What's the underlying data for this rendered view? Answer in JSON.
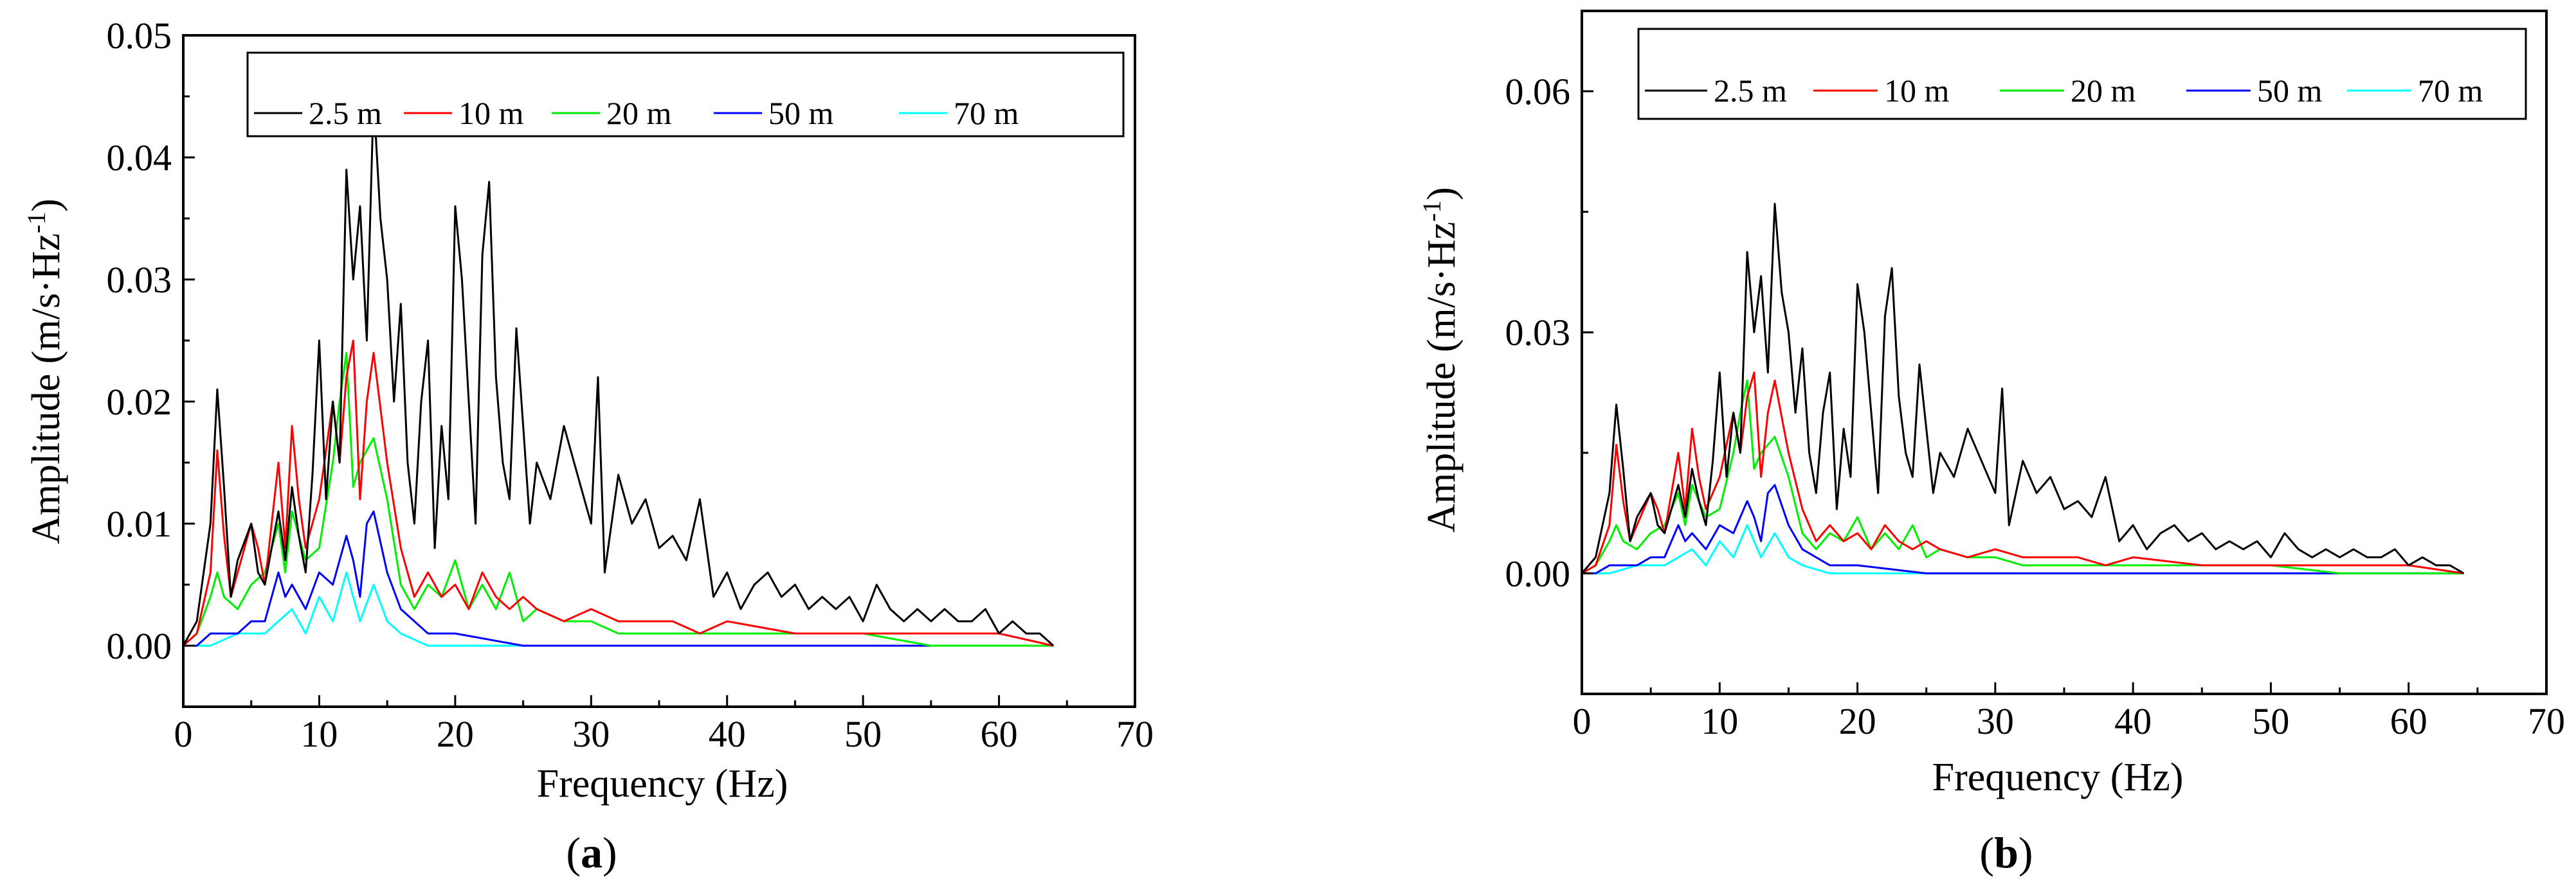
{
  "chart_data": [
    {
      "type": "line",
      "caption": "(a)",
      "caption_open": "(",
      "caption_letter": "a",
      "caption_close": ")",
      "xlabel": "Frequency  (Hz)",
      "ylabel": "Amplitude  (m/s·Hz",
      "ylabel_sup": "-1",
      "ylabel_close": ")",
      "xlim": [
        0,
        70
      ],
      "ylim": [
        -0.005,
        0.05
      ],
      "x_ticks": [
        0,
        10,
        20,
        30,
        40,
        50,
        60,
        70
      ],
      "x_tick_labels": [
        "0",
        "10",
        "20",
        "30",
        "40",
        "50",
        "60",
        "70"
      ],
      "y_ticks": [
        0.0,
        0.01,
        0.02,
        0.03,
        0.04,
        0.05
      ],
      "y_tick_labels": [
        "0.00",
        "0.01",
        "0.02",
        "0.03",
        "0.04",
        "0.05"
      ],
      "legend_position": "top",
      "series": [
        {
          "name": "2.5 m",
          "color": "#000000",
          "x": [
            0,
            1,
            2,
            2.5,
            3,
            3.5,
            4,
            5,
            5.5,
            6,
            7,
            7.5,
            8,
            8.5,
            9,
            9.5,
            10,
            10.5,
            11,
            11.5,
            12,
            12.5,
            13,
            13.5,
            14,
            14.5,
            15,
            15.5,
            16,
            16.5,
            17,
            17.5,
            18,
            18.5,
            19,
            19.5,
            20,
            20.5,
            21,
            21.5,
            22,
            22.5,
            23,
            23.5,
            24,
            24.5,
            25,
            25.5,
            26,
            27,
            28,
            29,
            30,
            30.5,
            31,
            32,
            33,
            34,
            35,
            36,
            37,
            38,
            39,
            40,
            41,
            42,
            43,
            44,
            45,
            46,
            47,
            48,
            49,
            50,
            51,
            52,
            53,
            54,
            55,
            56,
            57,
            58,
            59,
            60,
            61,
            62,
            63,
            64
          ],
          "y": [
            0.0,
            0.002,
            0.01,
            0.021,
            0.013,
            0.004,
            0.007,
            0.01,
            0.006,
            0.005,
            0.011,
            0.007,
            0.013,
            0.009,
            0.006,
            0.014,
            0.025,
            0.012,
            0.02,
            0.015,
            0.039,
            0.03,
            0.036,
            0.025,
            0.045,
            0.035,
            0.03,
            0.02,
            0.028,
            0.015,
            0.01,
            0.02,
            0.025,
            0.008,
            0.018,
            0.012,
            0.036,
            0.03,
            0.02,
            0.01,
            0.032,
            0.038,
            0.022,
            0.015,
            0.012,
            0.026,
            0.018,
            0.01,
            0.015,
            0.012,
            0.018,
            0.014,
            0.01,
            0.022,
            0.006,
            0.014,
            0.01,
            0.012,
            0.008,
            0.009,
            0.007,
            0.012,
            0.004,
            0.006,
            0.003,
            0.005,
            0.006,
            0.004,
            0.005,
            0.003,
            0.004,
            0.003,
            0.004,
            0.002,
            0.005,
            0.003,
            0.002,
            0.003,
            0.002,
            0.003,
            0.002,
            0.002,
            0.003,
            0.001,
            0.002,
            0.001,
            0.001,
            0.0
          ]
        },
        {
          "name": "10 m",
          "color": "#ff0000",
          "x": [
            0,
            1,
            2,
            2.5,
            3,
            3.5,
            4,
            5,
            5.5,
            6,
            7,
            7.5,
            8,
            8.5,
            9,
            10,
            11,
            11.5,
            12,
            12.5,
            13,
            13.5,
            14,
            15,
            16,
            17,
            18,
            19,
            20,
            21,
            22,
            23,
            24,
            25,
            26,
            28,
            30,
            32,
            34,
            36,
            38,
            40,
            45,
            50,
            55,
            60,
            64
          ],
          "y": [
            0.0,
            0.001,
            0.006,
            0.016,
            0.009,
            0.004,
            0.006,
            0.01,
            0.008,
            0.005,
            0.015,
            0.008,
            0.018,
            0.012,
            0.008,
            0.012,
            0.02,
            0.015,
            0.022,
            0.025,
            0.012,
            0.02,
            0.024,
            0.015,
            0.008,
            0.004,
            0.006,
            0.004,
            0.005,
            0.003,
            0.006,
            0.004,
            0.003,
            0.004,
            0.003,
            0.002,
            0.003,
            0.002,
            0.002,
            0.002,
            0.001,
            0.002,
            0.001,
            0.001,
            0.001,
            0.001,
            0.0
          ]
        },
        {
          "name": "20 m",
          "color": "#00ee00",
          "x": [
            0,
            1,
            2,
            2.5,
            3,
            4,
            5,
            6,
            7,
            7.5,
            8,
            9,
            10,
            11,
            11.5,
            12,
            12.5,
            13,
            14,
            15,
            16,
            17,
            18,
            19,
            20,
            21,
            22,
            23,
            24,
            25,
            26,
            28,
            30,
            32,
            35,
            38,
            40,
            45,
            50,
            55,
            60,
            64
          ],
          "y": [
            0.0,
            0.001,
            0.004,
            0.006,
            0.004,
            0.003,
            0.005,
            0.006,
            0.01,
            0.006,
            0.011,
            0.007,
            0.008,
            0.015,
            0.02,
            0.024,
            0.013,
            0.015,
            0.017,
            0.012,
            0.005,
            0.003,
            0.005,
            0.004,
            0.007,
            0.003,
            0.005,
            0.003,
            0.006,
            0.002,
            0.003,
            0.002,
            0.002,
            0.001,
            0.001,
            0.001,
            0.001,
            0.001,
            0.001,
            0.0,
            0.0,
            0.0
          ]
        },
        {
          "name": "50 m",
          "color": "#0000ff",
          "x": [
            0,
            1,
            2,
            3,
            4,
            5,
            6,
            7,
            7.5,
            8,
            9,
            10,
            11,
            12,
            12.5,
            13,
            13.5,
            14,
            15,
            16,
            17,
            18,
            20,
            25,
            30,
            40,
            50,
            60,
            64
          ],
          "y": [
            0.0,
            0.0,
            0.001,
            0.001,
            0.001,
            0.002,
            0.002,
            0.006,
            0.004,
            0.005,
            0.003,
            0.006,
            0.005,
            0.009,
            0.007,
            0.004,
            0.01,
            0.011,
            0.006,
            0.003,
            0.002,
            0.001,
            0.001,
            0.0,
            0.0,
            0.0,
            0.0,
            0.0,
            0.0
          ]
        },
        {
          "name": "70 m",
          "color": "#00ffff",
          "x": [
            0,
            2,
            4,
            6,
            7,
            8,
            9,
            10,
            11,
            12,
            13,
            14,
            15,
            16,
            18,
            20,
            30,
            40,
            50,
            60,
            64
          ],
          "y": [
            0.0,
            0.0,
            0.001,
            0.001,
            0.002,
            0.003,
            0.001,
            0.004,
            0.002,
            0.006,
            0.002,
            0.005,
            0.002,
            0.001,
            0.0,
            0.0,
            0.0,
            0.0,
            0.0,
            0.0,
            0.0
          ]
        }
      ]
    },
    {
      "type": "line",
      "caption": "(b)",
      "caption_open": "(",
      "caption_letter": "b",
      "caption_close": ")",
      "xlabel": "Frequency  (Hz)",
      "ylabel": "Amplitude  (m/s·Hz",
      "ylabel_sup": "-1",
      "ylabel_close": ")",
      "xlim": [
        0,
        70
      ],
      "ylim": [
        -0.015,
        0.07
      ],
      "x_ticks": [
        0,
        10,
        20,
        30,
        40,
        50,
        60,
        70
      ],
      "x_tick_labels": [
        "0",
        "10",
        "20",
        "30",
        "40",
        "50",
        "60",
        "70"
      ],
      "y_ticks": [
        0.0,
        0.03,
        0.06
      ],
      "y_tick_labels": [
        "0.00",
        "0.03",
        "0.06"
      ],
      "legend_position": "top",
      "series": [
        {
          "name": "2.5 m",
          "color": "#000000",
          "x": [
            0,
            1,
            2,
            2.5,
            3,
            3.5,
            4,
            5,
            5.5,
            6,
            7,
            7.5,
            8,
            8.5,
            9,
            9.5,
            10,
            10.5,
            11,
            11.5,
            12,
            12.5,
            13,
            13.5,
            14,
            14.5,
            15,
            15.5,
            16,
            16.5,
            17,
            17.5,
            18,
            18.5,
            19,
            19.5,
            20,
            20.5,
            21,
            21.5,
            22,
            22.5,
            23,
            23.5,
            24,
            24.5,
            25,
            25.5,
            26,
            27,
            28,
            29,
            30,
            30.5,
            31,
            32,
            33,
            34,
            35,
            36,
            37,
            38,
            39,
            40,
            41,
            42,
            43,
            44,
            45,
            46,
            47,
            48,
            49,
            50,
            51,
            52,
            53,
            54,
            55,
            56,
            57,
            58,
            59,
            60,
            61,
            62,
            63,
            64
          ],
          "y": [
            0.0,
            0.002,
            0.01,
            0.021,
            0.013,
            0.004,
            0.007,
            0.01,
            0.006,
            0.005,
            0.011,
            0.007,
            0.013,
            0.009,
            0.006,
            0.014,
            0.025,
            0.012,
            0.02,
            0.015,
            0.04,
            0.03,
            0.037,
            0.025,
            0.046,
            0.035,
            0.03,
            0.02,
            0.028,
            0.015,
            0.01,
            0.02,
            0.025,
            0.008,
            0.018,
            0.012,
            0.036,
            0.03,
            0.02,
            0.01,
            0.032,
            0.038,
            0.022,
            0.015,
            0.012,
            0.026,
            0.018,
            0.01,
            0.015,
            0.012,
            0.018,
            0.014,
            0.01,
            0.023,
            0.006,
            0.014,
            0.01,
            0.012,
            0.008,
            0.009,
            0.007,
            0.012,
            0.004,
            0.006,
            0.003,
            0.005,
            0.006,
            0.004,
            0.005,
            0.003,
            0.004,
            0.003,
            0.004,
            0.002,
            0.005,
            0.003,
            0.002,
            0.003,
            0.002,
            0.003,
            0.002,
            0.002,
            0.003,
            0.001,
            0.002,
            0.001,
            0.001,
            0.0
          ]
        },
        {
          "name": "10 m",
          "color": "#ff0000",
          "x": [
            0,
            1,
            2,
            2.5,
            3,
            3.5,
            4,
            5,
            5.5,
            6,
            7,
            7.5,
            8,
            8.5,
            9,
            10,
            11,
            11.5,
            12,
            12.5,
            13,
            13.5,
            14,
            15,
            16,
            17,
            18,
            19,
            20,
            21,
            22,
            23,
            24,
            25,
            26,
            28,
            30,
            32,
            34,
            36,
            38,
            40,
            45,
            50,
            55,
            60,
            64
          ],
          "y": [
            0.0,
            0.001,
            0.006,
            0.016,
            0.009,
            0.004,
            0.006,
            0.01,
            0.008,
            0.005,
            0.015,
            0.008,
            0.018,
            0.012,
            0.008,
            0.012,
            0.02,
            0.015,
            0.022,
            0.025,
            0.012,
            0.02,
            0.024,
            0.015,
            0.008,
            0.004,
            0.006,
            0.004,
            0.005,
            0.003,
            0.006,
            0.004,
            0.003,
            0.004,
            0.003,
            0.002,
            0.003,
            0.002,
            0.002,
            0.002,
            0.001,
            0.002,
            0.001,
            0.001,
            0.001,
            0.001,
            0.0
          ]
        },
        {
          "name": "20 m",
          "color": "#00ee00",
          "x": [
            0,
            1,
            2,
            2.5,
            3,
            4,
            5,
            6,
            7,
            7.5,
            8,
            9,
            10,
            11,
            11.5,
            12,
            12.5,
            13,
            14,
            15,
            16,
            17,
            18,
            19,
            20,
            21,
            22,
            23,
            24,
            25,
            26,
            28,
            30,
            32,
            35,
            38,
            40,
            45,
            50,
            55,
            60,
            64
          ],
          "y": [
            0.0,
            0.001,
            0.004,
            0.006,
            0.004,
            0.003,
            0.005,
            0.006,
            0.01,
            0.006,
            0.011,
            0.007,
            0.008,
            0.015,
            0.02,
            0.024,
            0.013,
            0.015,
            0.017,
            0.012,
            0.005,
            0.003,
            0.005,
            0.004,
            0.007,
            0.003,
            0.005,
            0.003,
            0.006,
            0.002,
            0.003,
            0.002,
            0.002,
            0.001,
            0.001,
            0.001,
            0.001,
            0.001,
            0.001,
            0.0,
            0.0,
            0.0
          ]
        },
        {
          "name": "50 m",
          "color": "#0000ff",
          "x": [
            0,
            1,
            2,
            3,
            4,
            5,
            6,
            7,
            7.5,
            8,
            9,
            10,
            11,
            12,
            12.5,
            13,
            13.5,
            14,
            15,
            16,
            17,
            18,
            20,
            25,
            30,
            40,
            50,
            60,
            64
          ],
          "y": [
            0.0,
            0.0,
            0.001,
            0.001,
            0.001,
            0.002,
            0.002,
            0.006,
            0.004,
            0.005,
            0.003,
            0.006,
            0.005,
            0.009,
            0.007,
            0.004,
            0.01,
            0.011,
            0.006,
            0.003,
            0.002,
            0.001,
            0.001,
            0.0,
            0.0,
            0.0,
            0.0,
            0.0,
            0.0
          ]
        },
        {
          "name": "70 m",
          "color": "#00ffff",
          "x": [
            0,
            2,
            4,
            6,
            7,
            8,
            9,
            10,
            11,
            12,
            13,
            14,
            15,
            16,
            18,
            20,
            30,
            40,
            50,
            60,
            64
          ],
          "y": [
            0.0,
            0.0,
            0.001,
            0.001,
            0.002,
            0.003,
            0.001,
            0.004,
            0.002,
            0.006,
            0.002,
            0.005,
            0.002,
            0.001,
            0.0,
            0.0,
            0.0,
            0.0,
            0.0,
            0.0,
            0.0
          ]
        }
      ]
    }
  ]
}
